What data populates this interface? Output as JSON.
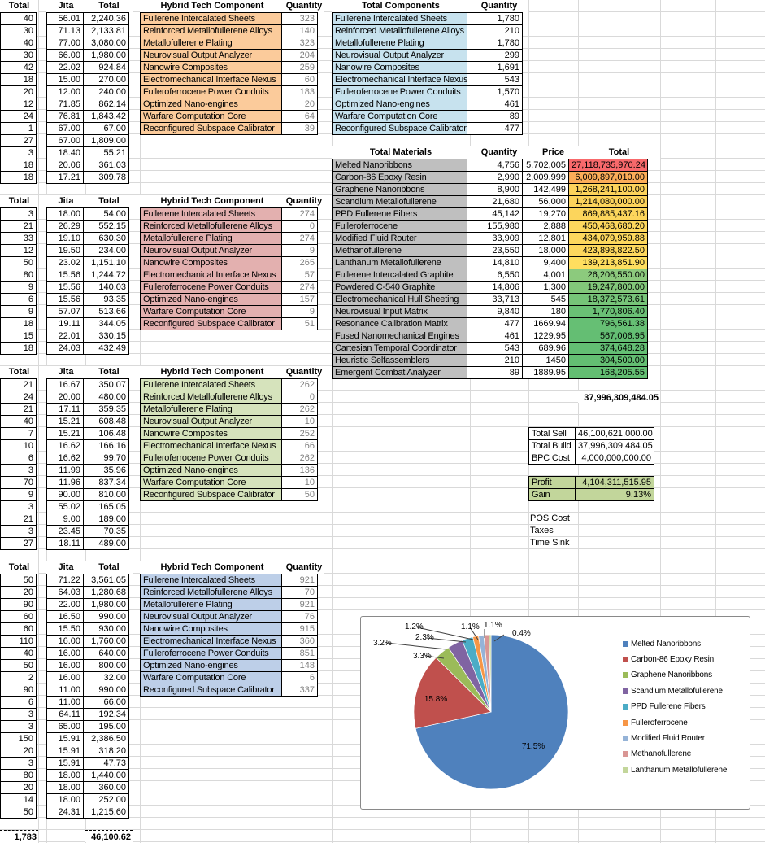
{
  "header_labels": {
    "total": "Total",
    "jita": "Jita",
    "hybrid": "Hybrid Tech Component",
    "quantity": "Quantity"
  },
  "component_names": [
    "Fullerene Intercalated Sheets",
    "Reinforced Metallofullerene Alloys",
    "Metallofullerene Plating",
    "Neurovisual Output Analyzer",
    "Nanowire Composites",
    "Electromechanical Interface Nexus",
    "Fulleroferrocene Power Conduits",
    "Optimized Nano-engines",
    "Warfare Computation Core",
    "Reconfigured Subspace Calibrator"
  ],
  "left_blocks": [
    {
      "rows": [
        [
          "40",
          "56.01",
          "2,240.36"
        ],
        [
          "30",
          "71.13",
          "2,133.81"
        ],
        [
          "40",
          "77.00",
          "3,080.00"
        ],
        [
          "30",
          "66.00",
          "1,980.00"
        ],
        [
          "42",
          "22.02",
          "924.84"
        ],
        [
          "18",
          "15.00",
          "270.00"
        ],
        [
          "20",
          "12.00",
          "240.00"
        ],
        [
          "12",
          "71.85",
          "862.14"
        ],
        [
          "24",
          "76.81",
          "1,843.42"
        ],
        [
          "1",
          "67.00",
          "67.00"
        ],
        [
          "27",
          "67.00",
          "1,809.00"
        ],
        [
          "3",
          "18.40",
          "55.21"
        ],
        [
          "18",
          "20.06",
          "361.03"
        ],
        [
          "18",
          "17.21",
          "309.78"
        ]
      ]
    },
    {
      "rows": [
        [
          "3",
          "18.00",
          "54.00"
        ],
        [
          "21",
          "26.29",
          "552.15"
        ],
        [
          "33",
          "19.10",
          "630.30"
        ],
        [
          "12",
          "19.50",
          "234.00"
        ],
        [
          "50",
          "23.02",
          "1,151.10"
        ],
        [
          "80",
          "15.56",
          "1,244.72"
        ],
        [
          "9",
          "15.56",
          "140.03"
        ],
        [
          "6",
          "15.56",
          "93.35"
        ],
        [
          "9",
          "57.07",
          "513.66"
        ],
        [
          "18",
          "19.11",
          "344.05"
        ],
        [
          "15",
          "22.01",
          "330.15"
        ],
        [
          "18",
          "24.03",
          "432.49"
        ]
      ]
    },
    {
      "rows": [
        [
          "21",
          "16.67",
          "350.07"
        ],
        [
          "24",
          "20.00",
          "480.00"
        ],
        [
          "21",
          "17.11",
          "359.35"
        ],
        [
          "40",
          "15.21",
          "608.48"
        ],
        [
          "7",
          "15.21",
          "106.48"
        ],
        [
          "10",
          "16.62",
          "166.16"
        ],
        [
          "6",
          "16.62",
          "99.70"
        ],
        [
          "3",
          "11.99",
          "35.96"
        ],
        [
          "70",
          "11.96",
          "837.34"
        ],
        [
          "9",
          "90.00",
          "810.00"
        ],
        [
          "3",
          "55.02",
          "165.05"
        ],
        [
          "21",
          "9.00",
          "189.00"
        ],
        [
          "3",
          "23.45",
          "70.35"
        ],
        [
          "27",
          "18.11",
          "489.00"
        ]
      ]
    },
    {
      "rows": [
        [
          "50",
          "71.22",
          "3,561.05"
        ],
        [
          "20",
          "64.03",
          "1,280.68"
        ],
        [
          "90",
          "22.00",
          "1,980.00"
        ],
        [
          "60",
          "16.50",
          "990.00"
        ],
        [
          "60",
          "15.50",
          "930.00"
        ],
        [
          "110",
          "16.00",
          "1,760.00"
        ],
        [
          "40",
          "16.00",
          "640.00"
        ],
        [
          "50",
          "16.00",
          "800.00"
        ],
        [
          "2",
          "16.00",
          "32.00"
        ],
        [
          "90",
          "11.00",
          "990.00"
        ],
        [
          "6",
          "11.00",
          "66.00"
        ],
        [
          "3",
          "64.11",
          "192.34"
        ],
        [
          "3",
          "65.00",
          "195.00"
        ],
        [
          "150",
          "15.91",
          "2,386.50"
        ],
        [
          "20",
          "15.91",
          "318.20"
        ],
        [
          "3",
          "15.91",
          "47.73"
        ],
        [
          "80",
          "18.00",
          "1,440.00"
        ],
        [
          "20",
          "18.00",
          "360.00"
        ],
        [
          "14",
          "18.00",
          "252.00"
        ],
        [
          "50",
          "24.31",
          "1,215.60"
        ]
      ]
    }
  ],
  "hybrid_fills": [
    "#FBCB9B",
    "#E3B0AF",
    "#D6E3BC",
    "#BDCFE8"
  ],
  "hybrid_quantities": [
    [
      "323",
      "140",
      "323",
      "204",
      "259",
      "60",
      "183",
      "20",
      "64",
      "39"
    ],
    [
      "274",
      "0",
      "274",
      "9",
      "265",
      "57",
      "274",
      "157",
      "9",
      "51"
    ],
    [
      "262",
      "0",
      "262",
      "10",
      "252",
      "66",
      "262",
      "136",
      "10",
      "50"
    ],
    [
      "921",
      "70",
      "921",
      "76",
      "915",
      "360",
      "851",
      "148",
      "6",
      "337"
    ]
  ],
  "grand_total": {
    "qty": "1,783",
    "value": "46,100.62"
  },
  "total_components": {
    "title": "Total Components",
    "fill": "#C7E2EE",
    "quantities": [
      "1,780",
      "210",
      "1,780",
      "299",
      "1,691",
      "543",
      "1,570",
      "461",
      "89",
      "477"
    ]
  },
  "total_materials": {
    "title": "Total Materials",
    "headers": [
      "Quantity",
      "Price",
      "Total"
    ],
    "name_fill": "#BFBFBF",
    "rows": [
      [
        "Melted Nanoribbons",
        "4,756",
        "5,702,005",
        "27,118,735,970.24",
        "#F8696B"
      ],
      [
        "Carbon-86 Epoxy Resin",
        "2,990",
        "2,009,999",
        "6,009,897,010.00",
        "#FBAC58"
      ],
      [
        "Graphene Nanoribbons",
        "8,900",
        "142,499",
        "1,268,241,100.00",
        "#FCD25B"
      ],
      [
        "Scandium Metallofullerene",
        "21,680",
        "56,000",
        "1,214,080,000.00",
        "#FCD25B"
      ],
      [
        "PPD Fullerene Fibers",
        "45,142",
        "19,270",
        "869,885,437.16",
        "#FCD55C"
      ],
      [
        "Fulleroferrocene",
        "155,980",
        "2,888",
        "450,468,680.20",
        "#FDD75D"
      ],
      [
        "Modified Fluid Router",
        "33,909",
        "12,801",
        "434,079,959.88",
        "#FDD75D"
      ],
      [
        "Methanofullerene",
        "23,550",
        "18,000",
        "423,898,822.50",
        "#FDD75D"
      ],
      [
        "Lanthanum Metallofullerene",
        "14,810",
        "9,400",
        "139,213,851.90",
        "#FEDE5F"
      ],
      [
        "Fullerene Intercalated Graphite",
        "6,550",
        "4,001",
        "26,206,550.00",
        "#8CCA7D"
      ],
      [
        "Powdered C-540 Graphite",
        "14,806",
        "1,300",
        "19,247,800.00",
        "#82C77A"
      ],
      [
        "Electromechanical Hull Sheeting",
        "33,713",
        "545",
        "18,372,573.61",
        "#76C478"
      ],
      [
        "Neurovisual Input Matrix",
        "9,840",
        "180",
        "1,770,806.40",
        "#6AC075"
      ],
      [
        "Resonance Calibration Matrix",
        "477",
        "1669.94",
        "796,561.38",
        "#66BF74"
      ],
      [
        "Fused Nanomechanical Engines",
        "461",
        "1229.95",
        "567,006.95",
        "#64BE73"
      ],
      [
        "Cartesian Temporal Coordinator",
        "543",
        "689.96",
        "374,648.28",
        "#63BE73"
      ],
      [
        "Heuristic Selfassemblers",
        "210",
        "1450",
        "304,500.00",
        "#63BE72"
      ],
      [
        "Emergent Combat Analyzer",
        "89",
        "1889.95",
        "168,205.55",
        "#63BE72"
      ]
    ],
    "sum": "37,996,309,484.05"
  },
  "summary": {
    "rows": [
      [
        "Total Sell",
        "46,100,621,000.00"
      ],
      [
        "Total Build",
        "37,996,309,484.05"
      ],
      [
        "BPC Cost",
        "4,000,000,000.00"
      ]
    ],
    "profit_rows": [
      [
        "Profit",
        "4,104,311,515.95"
      ],
      [
        "Gain",
        "9.13%"
      ]
    ],
    "profit_fill": "#C2D69B",
    "extra_labels": [
      "POS Cost",
      "Taxes",
      "Time Sink"
    ]
  },
  "chart_data": {
    "type": "pie",
    "labels": [
      "Melted Nanoribbons",
      "Carbon-86 Epoxy Resin",
      "Graphene Nanoribbons",
      "Scandium Metallofullerene",
      "PPD Fullerene Fibers",
      "Fulleroferrocene",
      "Modified Fluid Router",
      "Methanofullerene",
      "Lanthanum Metallofullerene"
    ],
    "values": [
      71.5,
      15.8,
      3.3,
      3.2,
      2.3,
      1.2,
      1.1,
      1.1,
      0.4
    ],
    "unit": "%",
    "colors": [
      "#4F81BD",
      "#C0504D",
      "#9BBB59",
      "#8064A2",
      "#4BACC6",
      "#F79646",
      "#95B3D7",
      "#D99694",
      "#C3D69B"
    ],
    "legend_position": "right",
    "title": ""
  }
}
